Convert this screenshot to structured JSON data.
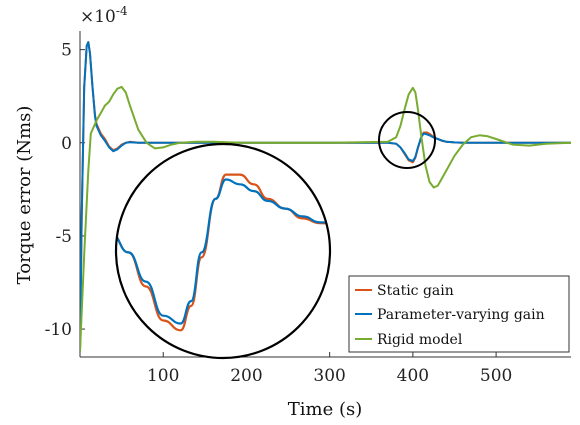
{
  "chart_data": {
    "type": "line",
    "xlabel": "Time (s)",
    "ylabel": "Torque error (Nms)",
    "exponent_label": "×10^-4",
    "exponent_base": "×10",
    "exponent_power": "-4",
    "xlim": [
      0,
      590
    ],
    "ylim": [
      -11.5,
      6
    ],
    "xticks": [
      100,
      200,
      300,
      400,
      500
    ],
    "yticks": [
      5,
      0,
      -5,
      -10
    ],
    "grid": false,
    "legend_position": "bottom-right",
    "series": [
      {
        "name": "Static gain",
        "color": "#D95319",
        "x": [
          0,
          2,
          5,
          8,
          10,
          12,
          15,
          18,
          20,
          25,
          30,
          35,
          40,
          45,
          50,
          55,
          60,
          70,
          80,
          100,
          150,
          200,
          300,
          370,
          380,
          385,
          390,
          395,
          400,
          403,
          406,
          410,
          413,
          417,
          421,
          425,
          430,
          435,
          440,
          450,
          460,
          480,
          500,
          590
        ],
        "y": [
          -11.2,
          -4,
          3,
          5.2,
          5.4,
          4.8,
          3.0,
          1.5,
          1.0,
          0.5,
          0.2,
          -0.2,
          -0.4,
          -0.3,
          -0.1,
          0,
          0.05,
          0,
          0,
          0,
          0,
          0,
          0,
          0,
          -0.05,
          -0.25,
          -0.6,
          -0.95,
          -1.05,
          -0.8,
          -0.3,
          0.3,
          0.55,
          0.55,
          0.45,
          0.3,
          0.2,
          0.1,
          0.05,
          0.02,
          0,
          0,
          0,
          0
        ]
      },
      {
        "name": "Parameter-varying gain",
        "color": "#0072BD",
        "x": [
          0,
          2,
          5,
          8,
          10,
          12,
          15,
          18,
          20,
          25,
          30,
          35,
          40,
          45,
          50,
          55,
          60,
          70,
          80,
          100,
          150,
          200,
          300,
          370,
          380,
          385,
          390,
          395,
          400,
          403,
          406,
          410,
          413,
          417,
          421,
          425,
          430,
          435,
          440,
          450,
          460,
          480,
          500,
          590
        ],
        "y": [
          -11.2,
          -4,
          3,
          5.2,
          5.4,
          4.8,
          3.0,
          1.4,
          0.9,
          0.4,
          0.1,
          -0.25,
          -0.45,
          -0.35,
          -0.15,
          0,
          0.03,
          0,
          0,
          0,
          0,
          0,
          0,
          0,
          -0.05,
          -0.25,
          -0.55,
          -0.9,
          -0.98,
          -0.75,
          -0.25,
          0.3,
          0.5,
          0.45,
          0.38,
          0.28,
          0.2,
          0.12,
          0.06,
          0.02,
          0,
          0,
          0,
          0
        ]
      },
      {
        "name": "Rigid model",
        "color": "#77AC30",
        "x": [
          0,
          5,
          10,
          13,
          20,
          25,
          30,
          35,
          40,
          45,
          50,
          55,
          60,
          70,
          80,
          90,
          100,
          110,
          120,
          140,
          160,
          180,
          200,
          300,
          370,
          380,
          385,
          390,
          395,
          400,
          403,
          406,
          410,
          415,
          420,
          425,
          430,
          435,
          440,
          450,
          460,
          470,
          480,
          490,
          500,
          520,
          540,
          560,
          590
        ],
        "y": [
          -11.2,
          -6,
          -1.5,
          0.5,
          1.2,
          1.6,
          2.0,
          2.2,
          2.6,
          2.9,
          3.0,
          2.7,
          2.0,
          0.7,
          0.0,
          -0.3,
          -0.25,
          -0.1,
          0.0,
          0.05,
          0.05,
          0.02,
          0.0,
          0.0,
          0.05,
          0.3,
          0.9,
          1.8,
          2.6,
          2.95,
          2.7,
          1.8,
          0.4,
          -1.2,
          -2.1,
          -2.4,
          -2.3,
          -1.9,
          -1.5,
          -0.7,
          -0.1,
          0.3,
          0.4,
          0.35,
          0.2,
          -0.1,
          -0.15,
          -0.05,
          0
        ]
      }
    ],
    "annotations": [
      {
        "type": "circle",
        "description_center_x": 403,
        "description_center_y": 0
      },
      {
        "type": "zoom-inset-circle"
      }
    ]
  },
  "legend": {
    "items": [
      {
        "label": "Static gain",
        "color": "#D95319"
      },
      {
        "label": "Parameter-varying gain",
        "color": "#0072BD"
      },
      {
        "label": "Rigid model",
        "color": "#77AC30"
      }
    ]
  }
}
